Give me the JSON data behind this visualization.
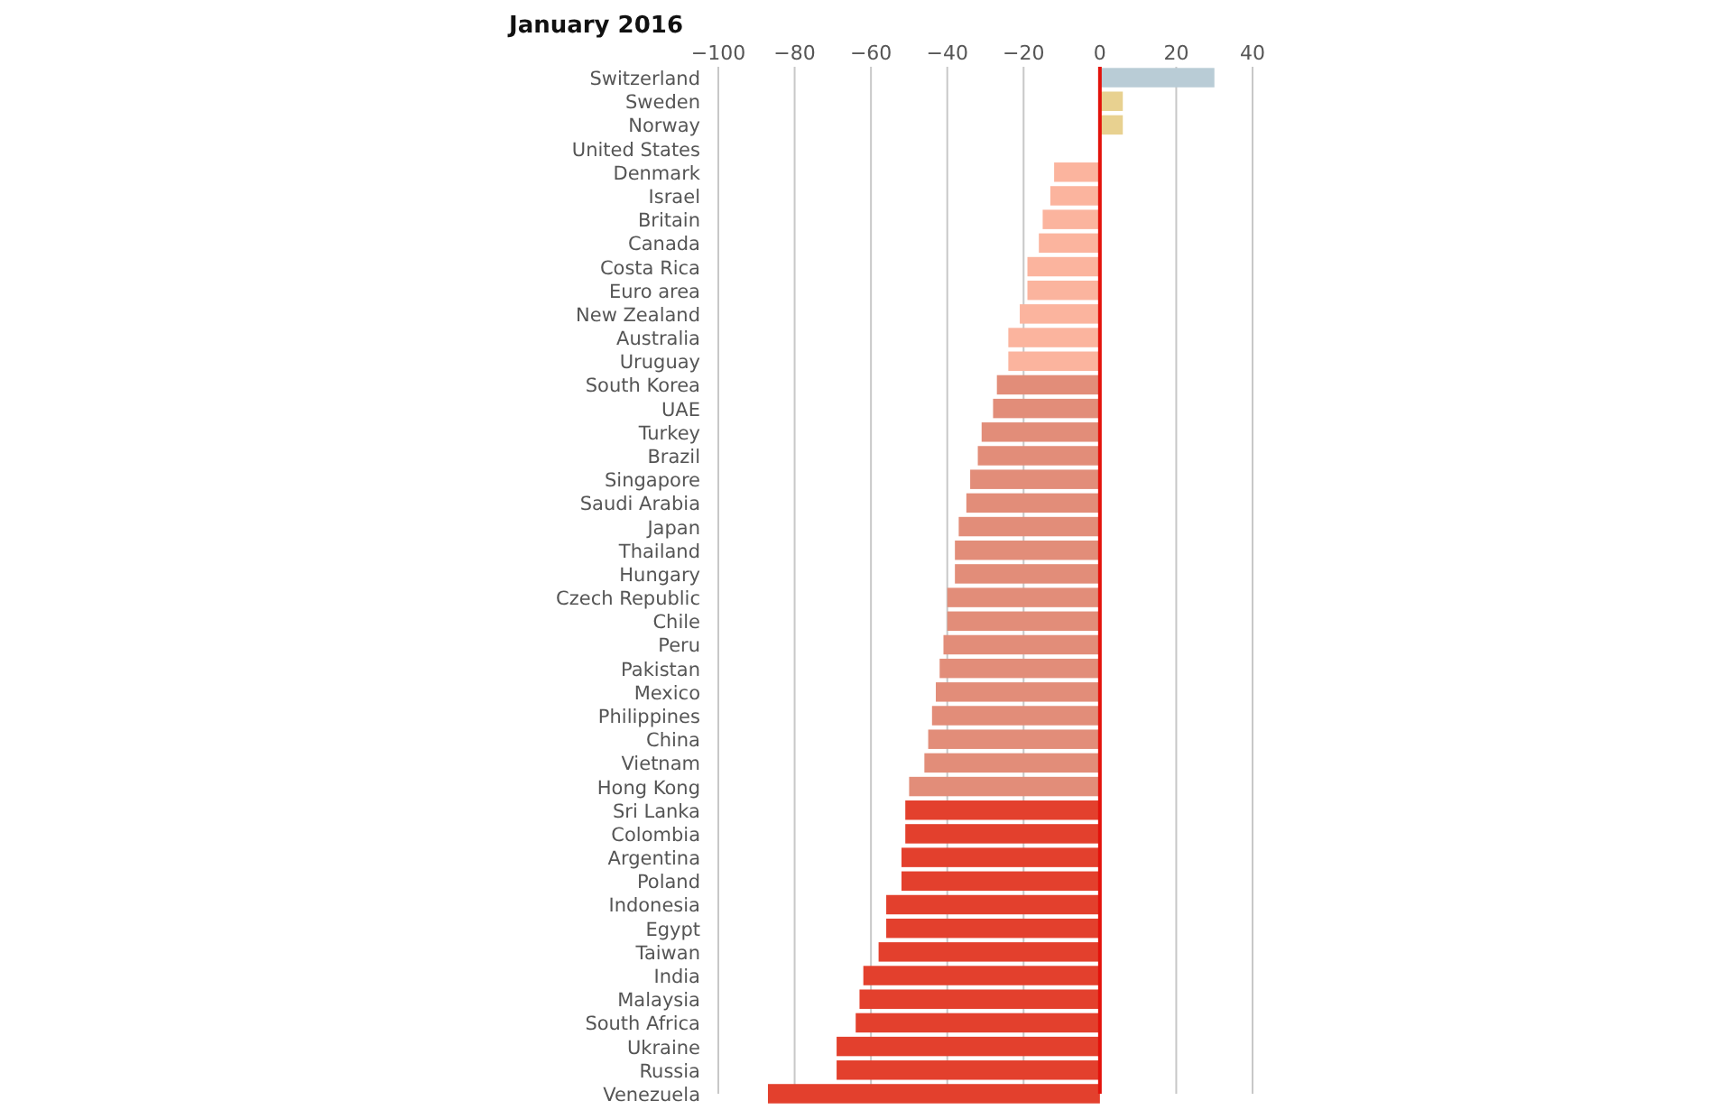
{
  "chart_data": {
    "type": "bar",
    "orientation": "horizontal",
    "title": "January 2016",
    "categories": [
      "Switzerland",
      "Sweden",
      "Norway",
      "United States",
      "Denmark",
      "Israel",
      "Britain",
      "Canada",
      "Costa Rica",
      "Euro area",
      "New Zealand",
      "Australia",
      "Uruguay",
      "South Korea",
      "UAE",
      "Turkey",
      "Brazil",
      "Singapore",
      "Saudi Arabia",
      "Japan",
      "Thailand",
      "Hungary",
      "Czech Republic",
      "Chile",
      "Peru",
      "Pakistan",
      "Mexico",
      "Philippines",
      "China",
      "Vietnam",
      "Hong Kong",
      "Sri Lanka",
      "Colombia",
      "Argentina",
      "Poland",
      "Indonesia",
      "Egypt",
      "Taiwan",
      "India",
      "Malaysia",
      "South Africa",
      "Ukraine",
      "Russia",
      "Venezuela"
    ],
    "values": [
      30,
      6,
      6,
      0,
      -12,
      -13,
      -15,
      -16,
      -19,
      -19,
      -21,
      -24,
      -24,
      -27,
      -28,
      -31,
      -32,
      -34,
      -35,
      -37,
      -38,
      -38,
      -40,
      -40,
      -41,
      -42,
      -43,
      -44,
      -45,
      -46,
      -50,
      -51,
      -51,
      -52,
      -52,
      -56,
      -56,
      -58,
      -62,
      -63,
      -64,
      -69,
      -69,
      -87
    ],
    "colors": [
      "#b9ccd6",
      "#e8d190",
      "#e8d190",
      "#e8d190",
      "#fbb49e",
      "#fbb49e",
      "#fbb49e",
      "#fbb49e",
      "#fbb49e",
      "#fbb49e",
      "#fbb49e",
      "#fbb49e",
      "#fbb49e",
      "#e28d79",
      "#e28d79",
      "#e28d79",
      "#e28d79",
      "#e28d79",
      "#e28d79",
      "#e28d79",
      "#e28d79",
      "#e28d79",
      "#e28d79",
      "#e28d79",
      "#e28d79",
      "#e28d79",
      "#e28d79",
      "#e28d79",
      "#e28d79",
      "#e28d79",
      "#e28d79",
      "#e3402d",
      "#e3402d",
      "#e3402d",
      "#e3402d",
      "#e3402d",
      "#e3402d",
      "#e3402d",
      "#e3402d",
      "#e3402d",
      "#e3402d",
      "#e3402d",
      "#e3402d",
      "#e3402d"
    ],
    "xlim": [
      -100,
      40
    ],
    "xticks": [
      {
        "value": -100,
        "label": "−100"
      },
      {
        "value": -80,
        "label": "−80"
      },
      {
        "value": -60,
        "label": "−60"
      },
      {
        "value": -40,
        "label": "−40"
      },
      {
        "value": -20,
        "label": "−20"
      },
      0,
      20,
      40
    ],
    "grid": "x",
    "ref_lines": [
      {
        "axis": "x",
        "value": 0,
        "color": "#e3120b"
      }
    ]
  }
}
